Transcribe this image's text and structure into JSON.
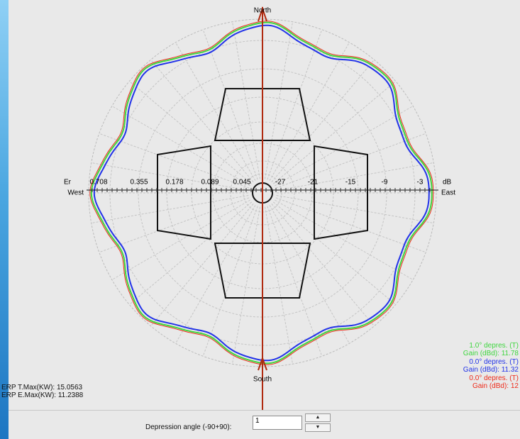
{
  "plot": {
    "north": "North",
    "south": "South",
    "west": "West",
    "east": "East",
    "left_unit": "Er",
    "right_unit": "dB",
    "left_scale": [
      "0.708",
      "0.355",
      "0.178",
      "0.089",
      "0.045"
    ],
    "right_scale": [
      "-27",
      "-21",
      "-15",
      "-9",
      "-3"
    ]
  },
  "legend": [
    {
      "label": "1.0° depres. (T)",
      "gain": "Gain (dBd): 11.78"
    },
    {
      "label": "0.0° depres. (T)",
      "gain": "Gain (dBd): 11.32"
    },
    {
      "label": "0.0° depres. (T)",
      "gain": "Gain (dBd): 12"
    }
  ],
  "erp": {
    "t_max": "ERP T.Max(KW): 15.0563",
    "e_max": "ERP E.Max(KW): 11.2388"
  },
  "controls": {
    "depression_label": "Depression angle (-90+90):",
    "depression_value": "1"
  }
}
